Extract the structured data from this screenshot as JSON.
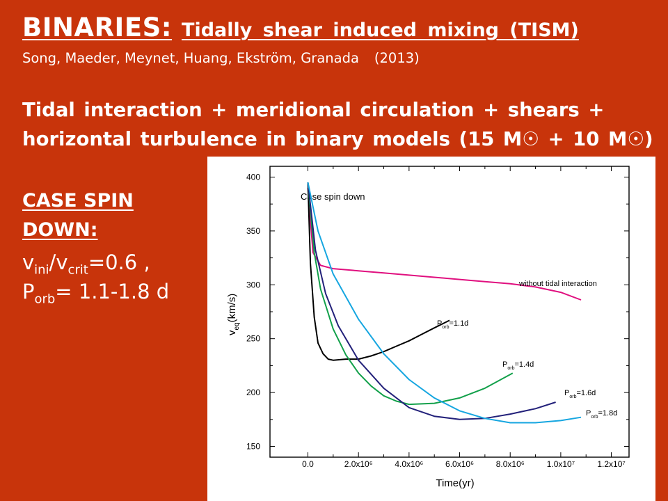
{
  "slide": {
    "background": "#c8340b",
    "title_main": "BINARIES:",
    "title_sub": "Tidally shear induced mixing (TISM)",
    "authors": "Song, Maeder, Meynet, Huang, Ekström, Granada",
    "year": "(2013)",
    "description": "Tidal interaction + meridional circulation + shears + horizontal turbulence in binary models (15 M☉ + 10 M☉)",
    "case_heading": "CASE SPIN DOWN:",
    "v_symbol": "v",
    "v_ini_sub": "ini",
    "slash": "/",
    "v_crit_sub": "crit",
    "ratio_value": "=0.6 ,",
    "p_symbol": "P",
    "p_sub": "orb",
    "p_value": "= 1.1-1.8 d"
  },
  "chart_data": {
    "type": "line",
    "title": "Case spin down",
    "xlabel": "Time(yr)",
    "ylabel_main": "v",
    "ylabel_sub": "eq",
    "ylabel_unit": "(km/s)",
    "xlim": [
      -1500000,
      12700000
    ],
    "ylim": [
      140,
      410
    ],
    "x_ticks": [
      {
        "value": 0,
        "label": "0.0"
      },
      {
        "value": 2000000,
        "label": "2.0x10⁶"
      },
      {
        "value": 4000000,
        "label": "4.0x10⁶"
      },
      {
        "value": 6000000,
        "label": "6.0x10⁶"
      },
      {
        "value": 8000000,
        "label": "8.0x10⁶"
      },
      {
        "value": 10000000,
        "label": "1.0x10⁷"
      },
      {
        "value": 12000000,
        "label": "1.2x10⁷"
      }
    ],
    "y_ticks": [
      150,
      200,
      250,
      300,
      350,
      400
    ],
    "series": [
      {
        "name": "without tidal interaction",
        "label_main": "without tidal interaction",
        "label_sub": "",
        "label_suffix": "",
        "color": "#e0107f",
        "x": [
          0,
          200000,
          500000,
          1000000,
          2000000,
          3000000,
          4000000,
          5000000,
          6000000,
          7000000,
          8000000,
          9000000,
          10000000,
          10800000
        ],
        "y": [
          390,
          330,
          318,
          315,
          313,
          311,
          309,
          307,
          305,
          303,
          301,
          298,
          293,
          286
        ]
      },
      {
        "name": "Porb=1.1d",
        "label_main": "P",
        "label_sub": "orb",
        "label_suffix": "=1.1d",
        "color": "#000000",
        "x": [
          0,
          100000,
          250000,
          400000,
          600000,
          800000,
          1000000,
          1500000,
          2000000,
          2500000,
          3000000,
          3500000,
          4000000,
          4500000,
          5000000,
          5600000
        ],
        "y": [
          395,
          320,
          270,
          246,
          236,
          231,
          230,
          231,
          231,
          234,
          238,
          243,
          248,
          254,
          260,
          267
        ]
      },
      {
        "name": "Porb=1.4d",
        "label_main": "P",
        "label_sub": "orb",
        "label_suffix": "=1.4d",
        "color": "#12a04a",
        "x": [
          0,
          250000,
          500000,
          1000000,
          1500000,
          2000000,
          2500000,
          3000000,
          3500000,
          4000000,
          5000000,
          6000000,
          7000000,
          8100000
        ],
        "y": [
          395,
          330,
          296,
          259,
          235,
          218,
          206,
          197,
          192,
          189,
          190,
          195,
          204,
          218
        ]
      },
      {
        "name": "Porb=1.6d",
        "label_main": "P",
        "label_sub": "orb",
        "label_suffix": "=1.6d",
        "color": "#23217a",
        "x": [
          0,
          300000,
          700000,
          1200000,
          2000000,
          3000000,
          4000000,
          5000000,
          6000000,
          7000000,
          8000000,
          9000000,
          9800000
        ],
        "y": [
          395,
          332,
          292,
          262,
          230,
          204,
          186,
          178,
          175,
          176,
          180,
          185,
          191
        ]
      },
      {
        "name": "Porb=1.8d",
        "label_main": "P",
        "label_sub": "orb",
        "label_suffix": "=1.8d",
        "color": "#16a6e0",
        "x": [
          0,
          400000,
          1000000,
          2000000,
          3000000,
          4000000,
          5000000,
          6000000,
          7000000,
          8000000,
          9000000,
          10000000,
          10800000
        ],
        "y": [
          395,
          350,
          310,
          268,
          236,
          212,
          195,
          183,
          176,
          172,
          172,
          174,
          177
        ]
      }
    ]
  }
}
